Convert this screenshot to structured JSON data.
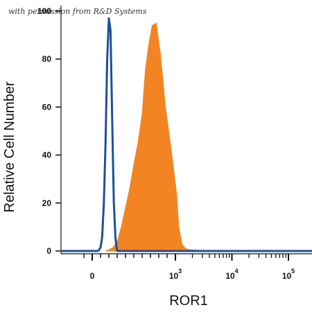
{
  "credit": "with permission from R&D Systems",
  "chart_data": {
    "type": "area",
    "xlabel": "ROR1",
    "ylabel": "Relative Cell Number",
    "ylim": [
      0,
      100
    ],
    "y_ticks": [
      "0",
      "20",
      "40",
      "60",
      "80",
      "100"
    ],
    "x_scale": "biexponential",
    "x_ticks": [
      {
        "base": "0",
        "exp": ""
      },
      {
        "base": "10",
        "exp": "3"
      },
      {
        "base": "10",
        "exp": "4"
      },
      {
        "base": "10",
        "exp": "5"
      }
    ],
    "colors": {
      "control": "#1f4e9c",
      "stained": "#f28522"
    },
    "series": [
      {
        "key": "control",
        "style": "outline",
        "x": [
          0,
          60,
          80,
          100,
          120,
          140,
          160,
          180,
          200,
          220,
          240,
          260,
          280,
          300
        ],
        "y": [
          0,
          0,
          0.3,
          1.5,
          6,
          20,
          45,
          80,
          97,
          92,
          55,
          20,
          5,
          0
        ]
      },
      {
        "key": "stained",
        "style": "filled",
        "x": [
          160,
          200,
          250,
          300,
          350,
          400,
          450,
          500,
          550,
          600,
          640,
          680,
          720,
          770,
          820,
          880,
          950,
          1050,
          1150,
          1300,
          1500,
          1800,
          2200,
          3000,
          10000,
          100000
        ],
        "y": [
          0,
          0.5,
          1.5,
          4,
          10,
          18,
          26,
          36,
          45,
          57,
          76,
          86,
          94,
          95,
          82,
          60,
          42,
          24,
          10,
          3,
          1,
          0.5,
          0.4,
          0.3,
          0.2,
          0.1
        ]
      }
    ]
  }
}
